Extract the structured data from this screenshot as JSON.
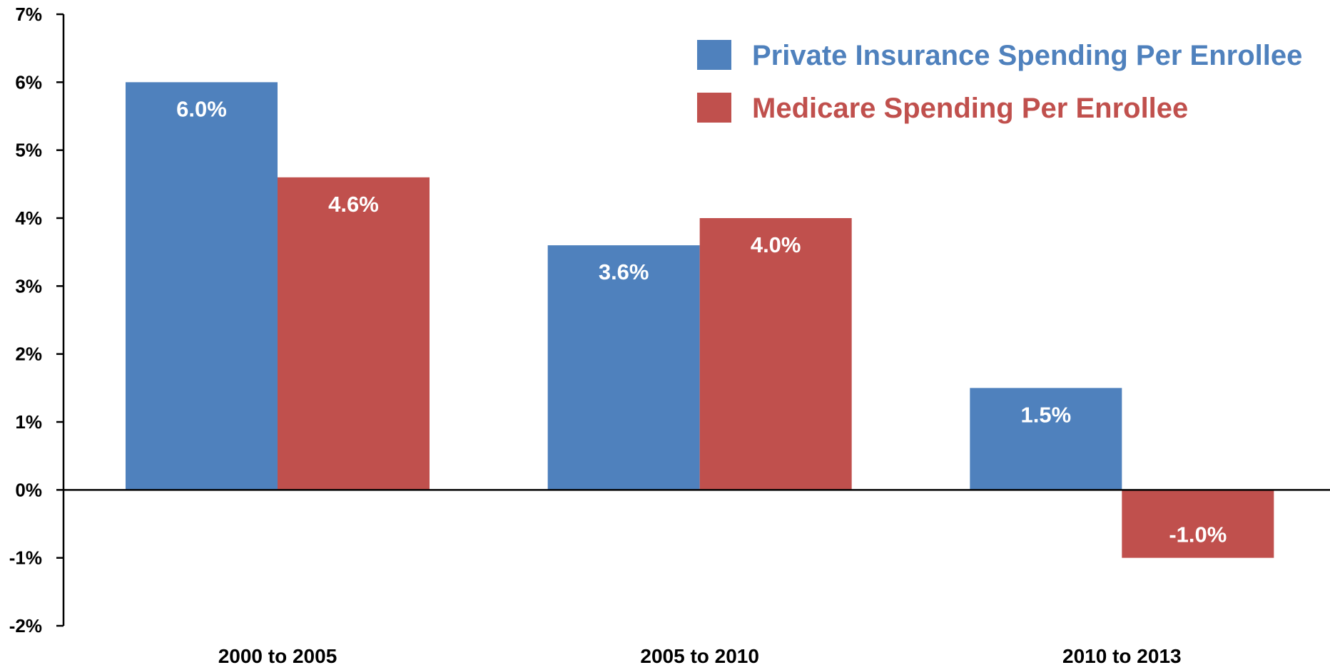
{
  "chart_data": {
    "type": "bar",
    "categories": [
      "2000 to 2005",
      "2005 to 2010",
      "2010 to 2013"
    ],
    "series": [
      {
        "name": "Private Insurance Spending Per Enrollee",
        "color": "#4f81bd",
        "values": [
          6.0,
          3.6,
          1.5
        ],
        "labels": [
          "6.0%",
          "3.6%",
          "1.5%"
        ]
      },
      {
        "name": "Medicare Spending Per Enrollee",
        "color": "#c0504d",
        "values": [
          4.6,
          4.0,
          -1.0
        ],
        "labels": [
          "4.6%",
          "4.0%",
          "-1.0%"
        ]
      }
    ],
    "ylim": [
      -2,
      7
    ],
    "yticks": [
      -2,
      -1,
      0,
      1,
      2,
      3,
      4,
      5,
      6,
      7
    ],
    "ytick_labels": [
      "-2%",
      "-1%",
      "0%",
      "1%",
      "2%",
      "3%",
      "4%",
      "5%",
      "6%",
      "7%"
    ],
    "title": "",
    "xlabel": "",
    "ylabel": "",
    "grid": false,
    "legend_position": "top-right"
  }
}
